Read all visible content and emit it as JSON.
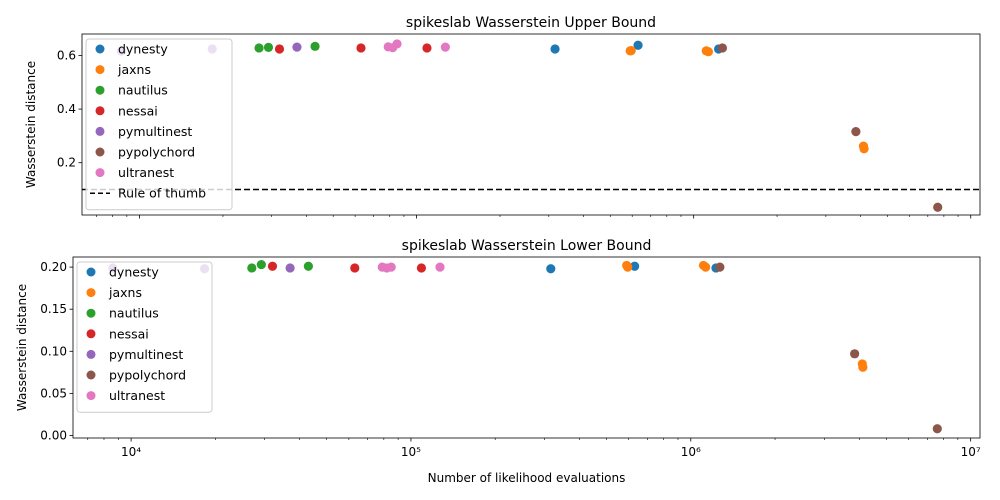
{
  "colors": {
    "dynesty": "#1f77b4",
    "jaxns": "#ff7f0e",
    "nautilus": "#2ca02c",
    "nessai": "#d62728",
    "pymultinest": "#9467bd",
    "pypolychord": "#8c564b",
    "ultranest": "#e377c2"
  },
  "chart_data": [
    {
      "type": "scatter",
      "title": "spikeslab Wasserstein Upper Bound",
      "xlabel": "",
      "ylabel": "Wasserstein distance",
      "xscale": "log",
      "xlim": [
        6200,
        10800000
      ],
      "ylim": [
        0.005,
        0.68
      ],
      "yticks": [
        0.2,
        0.4,
        0.6
      ],
      "ytick_labels": [
        "0.2",
        "0.4",
        "0.6"
      ],
      "xticks": [
        10000,
        100000,
        1000000,
        10000000
      ],
      "xtick_labels": [
        "",
        "",
        "",
        ""
      ],
      "legend": "upper left",
      "hline": {
        "y": 0.1,
        "label": "Rule of thumb",
        "style": "dashed",
        "color": "#000000"
      },
      "series": [
        {
          "name": "dynesty",
          "points": [
            [
              316000,
              0.624
            ],
            [
              630000,
              0.638
            ],
            [
              1230000,
              0.624
            ]
          ]
        },
        {
          "name": "jaxns",
          "points": [
            [
              590000,
              0.617
            ],
            [
              595000,
              0.618
            ],
            [
              1110000,
              0.617
            ],
            [
              1130000,
              0.614
            ],
            [
              4100000,
              0.262
            ],
            [
              4120000,
              0.252
            ]
          ]
        },
        {
          "name": "nautilus",
          "points": [
            [
              27000,
              0.628
            ],
            [
              29200,
              0.63
            ],
            [
              43000,
              0.634
            ]
          ]
        },
        {
          "name": "nessai",
          "points": [
            [
              32000,
              0.624
            ],
            [
              63000,
              0.628
            ],
            [
              109000,
              0.628
            ]
          ]
        },
        {
          "name": "pymultinest",
          "points": [
            [
              8600,
              0.616
            ],
            [
              18300,
              0.624
            ],
            [
              37000,
              0.631
            ]
          ]
        },
        {
          "name": "pypolychord",
          "points": [
            [
              1270000,
              0.628
            ],
            [
              3850000,
              0.316
            ],
            [
              7600000,
              0.034
            ]
          ]
        },
        {
          "name": "ultranest",
          "points": [
            [
              79000,
              0.632
            ],
            [
              82000,
              0.629
            ],
            [
              85000,
              0.643
            ],
            [
              127000,
              0.631
            ]
          ]
        }
      ]
    },
    {
      "type": "scatter",
      "title": "spikeslab Wasserstein Lower Bound",
      "xlabel": "Number of likelihood evaluations",
      "ylabel": "Wasserstein distance",
      "xscale": "log",
      "xlim": [
        6200,
        10800000
      ],
      "ylim": [
        -0.003,
        0.212
      ],
      "yticks": [
        0.0,
        0.05,
        0.1,
        0.15,
        0.2
      ],
      "ytick_labels": [
        "0.00",
        "0.05",
        "0.10",
        "0.15",
        "0.20"
      ],
      "xticks": [
        10000,
        100000,
        1000000,
        10000000
      ],
      "xtick_labels": [
        "10⁴",
        "10⁵",
        "10⁶",
        "10⁷"
      ],
      "legend": "upper left",
      "series": [
        {
          "name": "dynesty",
          "points": [
            [
              316000,
              0.198
            ],
            [
              630000,
              0.201
            ],
            [
              1230000,
              0.199
            ]
          ]
        },
        {
          "name": "jaxns",
          "points": [
            [
              590000,
              0.202
            ],
            [
              595000,
              0.2
            ],
            [
              1110000,
              0.202
            ],
            [
              1130000,
              0.2
            ],
            [
              4100000,
              0.085
            ],
            [
              4120000,
              0.081
            ]
          ]
        },
        {
          "name": "nautilus",
          "points": [
            [
              27000,
              0.199
            ],
            [
              29200,
              0.203
            ],
            [
              43000,
              0.201
            ]
          ]
        },
        {
          "name": "nessai",
          "points": [
            [
              32000,
              0.201
            ],
            [
              63000,
              0.199
            ],
            [
              109000,
              0.199
            ]
          ]
        },
        {
          "name": "pymultinest",
          "points": [
            [
              8600,
              0.199
            ],
            [
              18300,
              0.198
            ],
            [
              37000,
              0.199
            ]
          ]
        },
        {
          "name": "pypolychord",
          "points": [
            [
              1270000,
              0.2
            ],
            [
              3850000,
              0.097
            ],
            [
              7600000,
              0.008
            ]
          ]
        },
        {
          "name": "ultranest",
          "points": [
            [
              79000,
              0.2
            ],
            [
              82000,
              0.199
            ],
            [
              85000,
              0.2
            ],
            [
              127000,
              0.2
            ]
          ]
        }
      ]
    }
  ]
}
